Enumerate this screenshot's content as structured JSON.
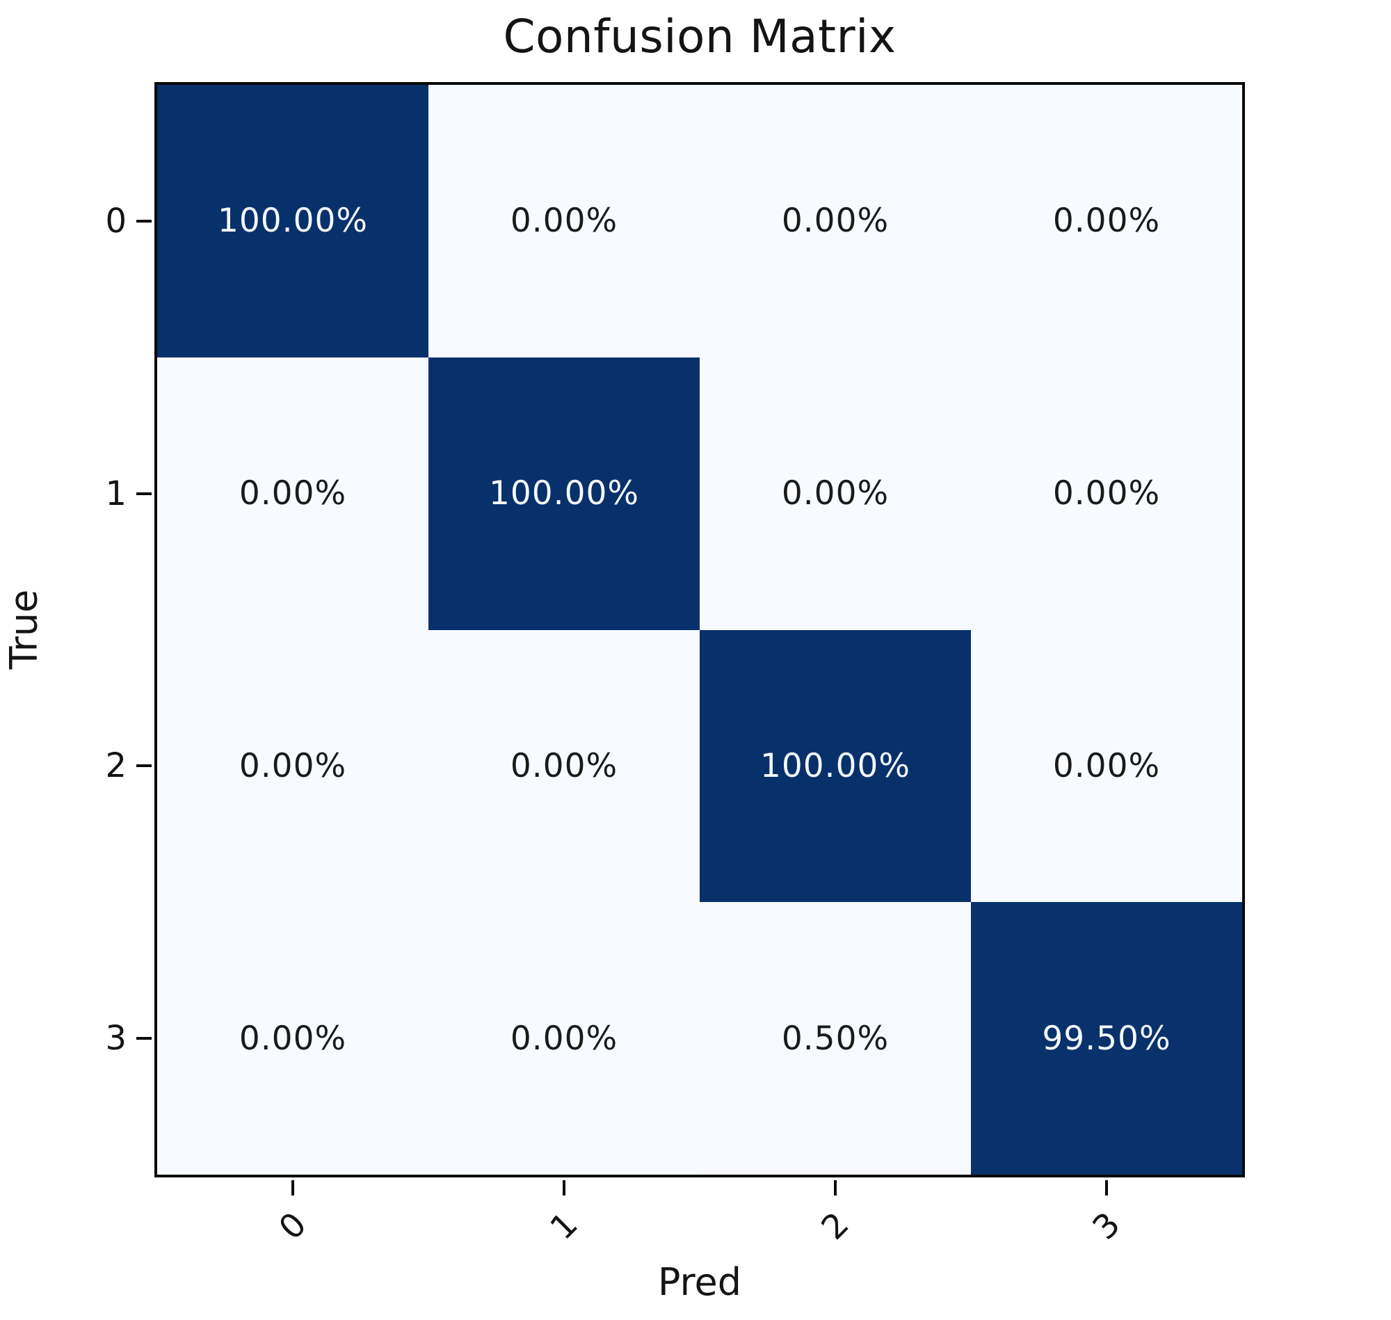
{
  "figure": {
    "title": "Confusion Matrix",
    "background_color": "#ffffff",
    "spine_color": "#0a0a0a"
  },
  "chart_data": {
    "type": "heatmap",
    "title": "Confusion Matrix",
    "xlabel": "Pred",
    "ylabel": "True",
    "x_tick_labels": [
      "0",
      "1",
      "2",
      "3"
    ],
    "y_tick_labels": [
      "0",
      "1",
      "2",
      "3"
    ],
    "x_tick_rotation_deg": 45,
    "value_range": [
      0,
      100
    ],
    "matrix_percent": [
      [
        100.0,
        0.0,
        0.0,
        0.0
      ],
      [
        0.0,
        100.0,
        0.0,
        0.0
      ],
      [
        0.0,
        0.0,
        100.0,
        0.0
      ],
      [
        0.0,
        0.0,
        0.5,
        99.5
      ]
    ],
    "cell_labels": [
      [
        "100.00%",
        "0.00%",
        "0.00%",
        "0.00%"
      ],
      [
        "0.00%",
        "100.00%",
        "0.00%",
        "0.00%"
      ],
      [
        "0.00%",
        "0.00%",
        "100.00%",
        "0.00%"
      ],
      [
        "0.00%",
        "0.00%",
        "0.50%",
        "99.50%"
      ]
    ],
    "colormap": {
      "name": "Blues",
      "low": "#f7fbff",
      "high": "#08306b"
    },
    "annotation_text_colors": {
      "on_dark": "#f5f9fd",
      "on_light": "#1a1a1a"
    },
    "legend": "none",
    "grid": "off"
  }
}
